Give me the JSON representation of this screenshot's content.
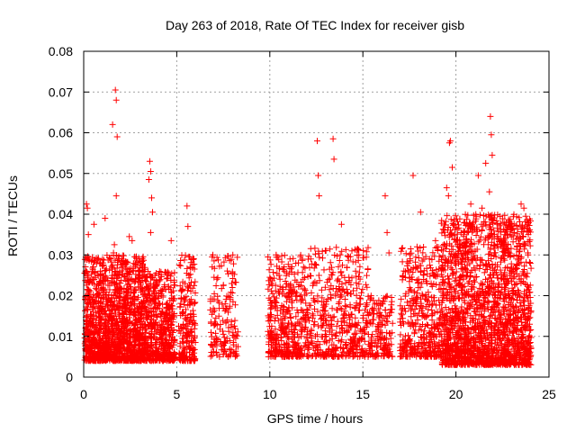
{
  "chart_data": {
    "type": "scatter",
    "title": "Day 263 of 2018, Rate Of TEC Index for receiver gisb",
    "xlabel": "GPS time / hours",
    "ylabel": "ROTI / TECUs",
    "xlim": [
      0,
      25
    ],
    "ylim": [
      0,
      0.08
    ],
    "xticks": [
      0,
      5,
      10,
      15,
      20,
      25
    ],
    "yticks": [
      0,
      0.01,
      0.02,
      0.03,
      0.04,
      0.05,
      0.06,
      0.07,
      0.08
    ],
    "xtick_labels": [
      "0",
      "5",
      "10",
      "15",
      "20",
      "25"
    ],
    "ytick_labels": [
      "0",
      "0.01",
      "0.02",
      "0.03",
      "0.04",
      "0.05",
      "0.06",
      "0.07",
      "0.08"
    ],
    "grid": true,
    "marker": "plus",
    "color": "#ff0000",
    "series": [
      {
        "points": [
          [
            0.05,
            0.0255
          ],
          [
            0.1,
            0.012
          ],
          [
            0.15,
            0.0425
          ],
          [
            0.2,
            0.0415
          ],
          [
            0.25,
            0.035
          ],
          [
            0.3,
            0.008
          ],
          [
            0.35,
            0.0105
          ],
          [
            0.4,
            0.0075
          ],
          [
            0.45,
            0.006
          ],
          [
            0.5,
            0.013
          ],
          [
            0.55,
            0.0375
          ],
          [
            0.6,
            0.0285
          ],
          [
            0.7,
            0.0085
          ],
          [
            0.8,
            0.011
          ],
          [
            0.9,
            0.0065
          ],
          [
            1.0,
            0.0095
          ],
          [
            1.1,
            0.0125
          ],
          [
            1.15,
            0.039
          ],
          [
            1.2,
            0.0075
          ],
          [
            1.3,
            0.0055
          ],
          [
            1.4,
            0.0105
          ],
          [
            1.5,
            0.0085
          ],
          [
            1.55,
            0.062
          ],
          [
            1.6,
            0.0305
          ],
          [
            1.65,
            0.0325
          ],
          [
            1.7,
            0.0705
          ],
          [
            1.75,
            0.068
          ],
          [
            1.8,
            0.059
          ],
          [
            1.75,
            0.0445
          ],
          [
            1.85,
            0.029
          ],
          [
            1.9,
            0.0115
          ],
          [
            2.0,
            0.0075
          ],
          [
            2.1,
            0.0145
          ],
          [
            2.2,
            0.0095
          ],
          [
            2.3,
            0.0065
          ],
          [
            2.45,
            0.0345
          ],
          [
            2.6,
            0.0335
          ],
          [
            2.7,
            0.018
          ],
          [
            2.8,
            0.008
          ],
          [
            2.9,
            0.0105
          ],
          [
            3.0,
            0.0135
          ],
          [
            3.2,
            0.0095
          ],
          [
            3.35,
            0.0075
          ],
          [
            3.45,
            0.0215
          ],
          [
            3.5,
            0.0485
          ],
          [
            3.55,
            0.053
          ],
          [
            3.6,
            0.0505
          ],
          [
            3.65,
            0.044
          ],
          [
            3.7,
            0.0405
          ],
          [
            3.6,
            0.0355
          ],
          [
            3.75,
            0.019
          ],
          [
            3.85,
            0.0085
          ],
          [
            4.0,
            0.0115
          ],
          [
            4.2,
            0.0095
          ],
          [
            4.4,
            0.0135
          ],
          [
            4.55,
            0.0085
          ],
          [
            4.7,
            0.0335
          ],
          [
            4.85,
            0.0055
          ],
          [
            5.1,
            0.0125
          ],
          [
            5.3,
            0.0095
          ],
          [
            5.45,
            0.007
          ],
          [
            5.55,
            0.042
          ],
          [
            5.6,
            0.037
          ],
          [
            5.65,
            0.025
          ],
          [
            5.7,
            0.0295
          ],
          [
            5.75,
            0.0155
          ],
          [
            5.85,
            0.0065
          ],
          [
            6.0,
            0.0085
          ],
          [
            6.9,
            0.0295
          ],
          [
            7.0,
            0.0245
          ],
          [
            7.1,
            0.0145
          ],
          [
            7.5,
            0.0225
          ],
          [
            7.6,
            0.018
          ],
          [
            7.7,
            0.0095
          ],
          [
            8.1,
            0.0125
          ],
          [
            8.2,
            0.0075
          ],
          [
            9.9,
            0.0295
          ],
          [
            10.0,
            0.0245
          ],
          [
            10.1,
            0.0125
          ],
          [
            10.3,
            0.0095
          ],
          [
            10.5,
            0.0075
          ],
          [
            10.7,
            0.0155
          ],
          [
            10.9,
            0.0105
          ],
          [
            11.1,
            0.0225
          ],
          [
            11.3,
            0.0085
          ],
          [
            11.5,
            0.0135
          ],
          [
            12.0,
            0.0095
          ],
          [
            12.3,
            0.0145
          ],
          [
            12.5,
            0.0275
          ],
          [
            12.55,
            0.058
          ],
          [
            12.6,
            0.0495
          ],
          [
            12.65,
            0.0445
          ],
          [
            12.8,
            0.0185
          ],
          [
            13.0,
            0.0105
          ],
          [
            13.2,
            0.0215
          ],
          [
            13.4,
            0.0585
          ],
          [
            13.45,
            0.0535
          ],
          [
            13.6,
            0.0125
          ],
          [
            13.85,
            0.0375
          ],
          [
            13.9,
            0.0275
          ],
          [
            14.0,
            0.0155
          ],
          [
            14.1,
            0.0085
          ],
          [
            14.4,
            0.0125
          ],
          [
            14.6,
            0.0095
          ],
          [
            15.0,
            0.0145
          ],
          [
            15.3,
            0.0105
          ],
          [
            15.5,
            0.0075
          ],
          [
            15.8,
            0.0125
          ],
          [
            16.2,
            0.0445
          ],
          [
            16.3,
            0.0355
          ],
          [
            16.4,
            0.0305
          ],
          [
            16.5,
            0.0095
          ],
          [
            17.0,
            0.0135
          ],
          [
            17.3,
            0.0085
          ],
          [
            17.5,
            0.0245
          ],
          [
            17.7,
            0.0495
          ],
          [
            17.8,
            0.0155
          ],
          [
            18.1,
            0.0405
          ],
          [
            18.3,
            0.0095
          ],
          [
            18.6,
            0.0275
          ],
          [
            18.9,
            0.0335
          ],
          [
            19.0,
            0.0125
          ],
          [
            19.3,
            0.0195
          ],
          [
            19.5,
            0.0465
          ],
          [
            19.6,
            0.0445
          ],
          [
            19.65,
            0.0575
          ],
          [
            19.7,
            0.058
          ],
          [
            19.8,
            0.0515
          ],
          [
            19.9,
            0.0385
          ],
          [
            20.0,
            0.0275
          ],
          [
            20.1,
            0.0155
          ],
          [
            20.3,
            0.0095
          ],
          [
            20.6,
            0.0355
          ],
          [
            20.8,
            0.0425
          ],
          [
            21.0,
            0.0205
          ],
          [
            21.2,
            0.0495
          ],
          [
            21.4,
            0.0415
          ],
          [
            21.6,
            0.0525
          ],
          [
            21.8,
            0.0455
          ],
          [
            21.85,
            0.064
          ],
          [
            21.9,
            0.0595
          ],
          [
            21.95,
            0.0545
          ],
          [
            22.0,
            0.0385
          ],
          [
            22.2,
            0.0175
          ],
          [
            22.5,
            0.0105
          ],
          [
            22.8,
            0.0325
          ],
          [
            23.0,
            0.0235
          ],
          [
            23.2,
            0.0145
          ],
          [
            23.5,
            0.0425
          ],
          [
            23.65,
            0.0415
          ],
          [
            23.75,
            0.0395
          ],
          [
            23.85,
            0.0375
          ],
          [
            23.9,
            0.0215
          ],
          [
            24.0,
            0.0085
          ]
        ]
      }
    ],
    "dense_bands": [
      {
        "x0": 0.05,
        "x1": 3.3,
        "lo": 0.004,
        "hi": 0.03,
        "n": 1400
      },
      {
        "x0": 3.3,
        "x1": 4.9,
        "lo": 0.004,
        "hi": 0.026,
        "n": 500
      },
      {
        "x0": 5.1,
        "x1": 6.0,
        "lo": 0.004,
        "hi": 0.03,
        "n": 200
      },
      {
        "x0": 6.8,
        "x1": 8.3,
        "lo": 0.005,
        "hi": 0.03,
        "n": 150
      },
      {
        "x0": 9.9,
        "x1": 12.0,
        "lo": 0.005,
        "hi": 0.03,
        "n": 400
      },
      {
        "x0": 12.0,
        "x1": 15.3,
        "lo": 0.005,
        "hi": 0.032,
        "n": 450
      },
      {
        "x0": 15.3,
        "x1": 16.6,
        "lo": 0.005,
        "hi": 0.02,
        "n": 150
      },
      {
        "x0": 17.0,
        "x1": 19.2,
        "lo": 0.005,
        "hi": 0.032,
        "n": 400
      },
      {
        "x0": 19.2,
        "x1": 24.05,
        "lo": 0.003,
        "hi": 0.04,
        "n": 2000
      }
    ]
  }
}
